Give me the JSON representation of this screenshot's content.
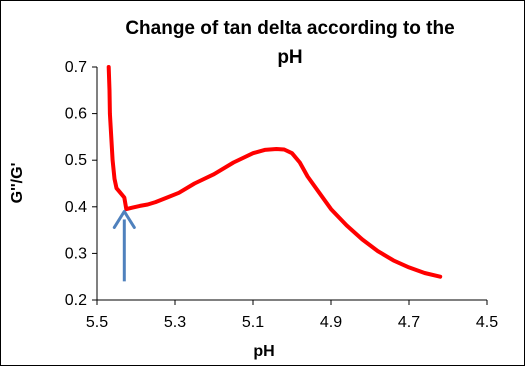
{
  "chart_data": {
    "type": "line",
    "title_lines": [
      "Change of tan delta according to the",
      "pH"
    ],
    "xlabel": "pH",
    "ylabel": "G''/G'",
    "xlim": [
      5.5,
      4.5
    ],
    "ylim": [
      0.2,
      0.7
    ],
    "x_ticks": [
      "5.5",
      "5.3",
      "5.1",
      "4.9",
      "4.7",
      "4.5"
    ],
    "y_ticks": [
      "0.7",
      "0.6",
      "0.5",
      "0.4",
      "0.3",
      "0.2"
    ],
    "grid": false,
    "legend": "none",
    "series": [
      {
        "color": "#ff0000",
        "x": [
          5.47,
          5.468,
          5.467,
          5.46,
          5.455,
          5.45,
          5.44,
          5.43,
          5.425,
          5.41,
          5.39,
          5.37,
          5.35,
          5.32,
          5.29,
          5.25,
          5.2,
          5.15,
          5.1,
          5.07,
          5.04,
          5.02,
          5.0,
          4.98,
          4.96,
          4.93,
          4.9,
          4.86,
          4.82,
          4.78,
          4.74,
          4.7,
          4.66,
          4.62
        ],
        "y": [
          0.7,
          0.65,
          0.6,
          0.5,
          0.46,
          0.44,
          0.43,
          0.42,
          0.395,
          0.398,
          0.402,
          0.405,
          0.41,
          0.42,
          0.43,
          0.45,
          0.47,
          0.495,
          0.515,
          0.522,
          0.524,
          0.523,
          0.515,
          0.495,
          0.465,
          0.43,
          0.395,
          0.36,
          0.33,
          0.305,
          0.285,
          0.27,
          0.258,
          0.25
        ]
      }
    ],
    "annotation": {
      "type": "arrow",
      "color": "#4f81bd",
      "x": 5.43,
      "y_from": 0.24,
      "y_to": 0.39
    }
  }
}
